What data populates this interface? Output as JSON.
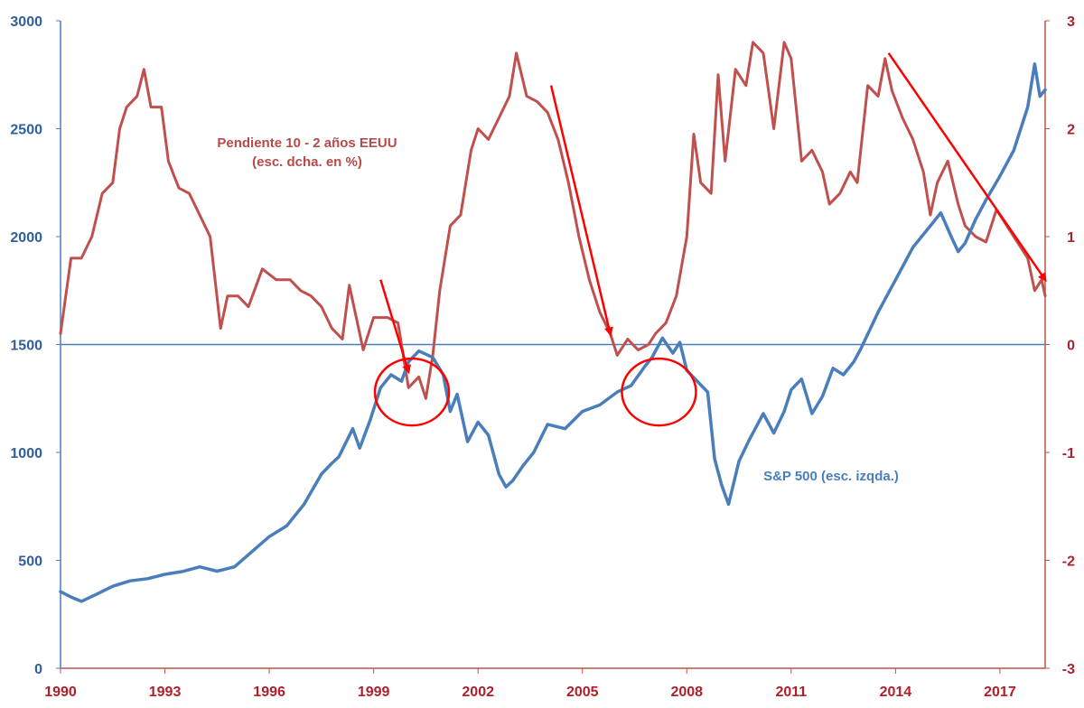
{
  "chart_data": {
    "type": "line",
    "title": "",
    "x_ticks": [
      "1990",
      "1993",
      "1996",
      "1999",
      "2002",
      "2005",
      "2008",
      "2011",
      "2014",
      "2017"
    ],
    "x_range": [
      1990,
      2018.3
    ],
    "left_axis": {
      "ticks": [
        "0",
        "500",
        "1000",
        "1500",
        "2000",
        "2500",
        "3000"
      ],
      "range": [
        0,
        3000
      ],
      "color": "#2f5f9e"
    },
    "right_axis": {
      "ticks": [
        "-3",
        "-2",
        "-1",
        "0",
        "1",
        "2",
        "3"
      ],
      "range": [
        -3,
        3
      ],
      "color": "#a6242e"
    },
    "series": [
      {
        "name": "S&P 500",
        "label": "S&P 500 (esc. izqda.)",
        "axis": "left",
        "color": "#4a7ebb",
        "points": [
          [
            1990.0,
            355
          ],
          [
            1990.3,
            330
          ],
          [
            1990.6,
            310
          ],
          [
            1991.0,
            340
          ],
          [
            1991.5,
            380
          ],
          [
            1992.0,
            405
          ],
          [
            1992.5,
            415
          ],
          [
            1993.0,
            435
          ],
          [
            1993.5,
            448
          ],
          [
            1994.0,
            470
          ],
          [
            1994.5,
            450
          ],
          [
            1995.0,
            470
          ],
          [
            1995.5,
            540
          ],
          [
            1996.0,
            610
          ],
          [
            1996.5,
            660
          ],
          [
            1997.0,
            760
          ],
          [
            1997.5,
            900
          ],
          [
            1997.8,
            950
          ],
          [
            1998.0,
            980
          ],
          [
            1998.4,
            1110
          ],
          [
            1998.6,
            1020
          ],
          [
            1998.9,
            1150
          ],
          [
            1999.2,
            1300
          ],
          [
            1999.5,
            1360
          ],
          [
            1999.8,
            1330
          ],
          [
            2000.0,
            1420
          ],
          [
            2000.3,
            1470
          ],
          [
            2000.7,
            1440
          ],
          [
            2001.0,
            1360
          ],
          [
            2001.2,
            1190
          ],
          [
            2001.4,
            1270
          ],
          [
            2001.7,
            1050
          ],
          [
            2002.0,
            1140
          ],
          [
            2002.3,
            1080
          ],
          [
            2002.6,
            900
          ],
          [
            2002.8,
            840
          ],
          [
            2003.0,
            870
          ],
          [
            2003.3,
            940
          ],
          [
            2003.6,
            1000
          ],
          [
            2004.0,
            1130
          ],
          [
            2004.5,
            1110
          ],
          [
            2005.0,
            1190
          ],
          [
            2005.5,
            1220
          ],
          [
            2006.0,
            1280
          ],
          [
            2006.4,
            1310
          ],
          [
            2006.8,
            1400
          ],
          [
            2007.0,
            1440
          ],
          [
            2007.3,
            1530
          ],
          [
            2007.6,
            1460
          ],
          [
            2007.8,
            1510
          ],
          [
            2008.0,
            1380
          ],
          [
            2008.3,
            1330
          ],
          [
            2008.6,
            1280
          ],
          [
            2008.8,
            970
          ],
          [
            2009.0,
            850
          ],
          [
            2009.2,
            760
          ],
          [
            2009.5,
            960
          ],
          [
            2009.8,
            1060
          ],
          [
            2010.0,
            1120
          ],
          [
            2010.2,
            1180
          ],
          [
            2010.5,
            1090
          ],
          [
            2010.8,
            1190
          ],
          [
            2011.0,
            1290
          ],
          [
            2011.3,
            1340
          ],
          [
            2011.6,
            1180
          ],
          [
            2011.9,
            1260
          ],
          [
            2012.2,
            1390
          ],
          [
            2012.5,
            1360
          ],
          [
            2012.8,
            1420
          ],
          [
            2013.0,
            1480
          ],
          [
            2013.5,
            1650
          ],
          [
            2014.0,
            1800
          ],
          [
            2014.5,
            1950
          ],
          [
            2015.0,
            2050
          ],
          [
            2015.3,
            2110
          ],
          [
            2015.6,
            2000
          ],
          [
            2015.8,
            1930
          ],
          [
            2016.0,
            1970
          ],
          [
            2016.3,
            2080
          ],
          [
            2016.6,
            2170
          ],
          [
            2017.0,
            2280
          ],
          [
            2017.4,
            2400
          ],
          [
            2017.8,
            2600
          ],
          [
            2018.0,
            2800
          ],
          [
            2018.15,
            2650
          ],
          [
            2018.3,
            2680
          ]
        ]
      },
      {
        "name": "Pendiente 10 - 2 años EEUU",
        "label_line1": "Pendiente 10 - 2 años EEUU",
        "label_line2": "(esc. dcha. en %)",
        "axis": "right",
        "color": "#c0504d",
        "points": [
          [
            1990.0,
            0.1
          ],
          [
            1990.3,
            0.8
          ],
          [
            1990.6,
            0.8
          ],
          [
            1990.9,
            1.0
          ],
          [
            1991.2,
            1.4
          ],
          [
            1991.5,
            1.5
          ],
          [
            1991.7,
            2.0
          ],
          [
            1991.9,
            2.2
          ],
          [
            1992.2,
            2.3
          ],
          [
            1992.4,
            2.55
          ],
          [
            1992.6,
            2.2
          ],
          [
            1992.9,
            2.2
          ],
          [
            1993.1,
            1.7
          ],
          [
            1993.4,
            1.45
          ],
          [
            1993.7,
            1.4
          ],
          [
            1994.0,
            1.2
          ],
          [
            1994.3,
            1.0
          ],
          [
            1994.6,
            0.15
          ],
          [
            1994.8,
            0.45
          ],
          [
            1995.1,
            0.45
          ],
          [
            1995.4,
            0.35
          ],
          [
            1995.8,
            0.7
          ],
          [
            1996.2,
            0.6
          ],
          [
            1996.6,
            0.6
          ],
          [
            1996.9,
            0.5
          ],
          [
            1997.2,
            0.45
          ],
          [
            1997.5,
            0.35
          ],
          [
            1997.8,
            0.15
          ],
          [
            1998.1,
            0.05
          ],
          [
            1998.3,
            0.55
          ],
          [
            1998.7,
            -0.05
          ],
          [
            1999.0,
            0.25
          ],
          [
            1999.4,
            0.25
          ],
          [
            1999.7,
            0.2
          ],
          [
            2000.0,
            -0.4
          ],
          [
            2000.3,
            -0.3
          ],
          [
            2000.5,
            -0.5
          ],
          [
            2000.7,
            -0.1
          ],
          [
            2000.9,
            0.5
          ],
          [
            2001.2,
            1.1
          ],
          [
            2001.5,
            1.2
          ],
          [
            2001.8,
            1.8
          ],
          [
            2002.0,
            2.0
          ],
          [
            2002.3,
            1.9
          ],
          [
            2002.6,
            2.1
          ],
          [
            2002.9,
            2.3
          ],
          [
            2003.1,
            2.7
          ],
          [
            2003.4,
            2.3
          ],
          [
            2003.7,
            2.25
          ],
          [
            2004.0,
            2.15
          ],
          [
            2004.3,
            1.9
          ],
          [
            2004.6,
            1.5
          ],
          [
            2004.9,
            1.0
          ],
          [
            2005.2,
            0.6
          ],
          [
            2005.5,
            0.3
          ],
          [
            2005.8,
            0.1
          ],
          [
            2006.0,
            -0.1
          ],
          [
            2006.3,
            0.05
          ],
          [
            2006.6,
            -0.05
          ],
          [
            2006.9,
            0.0
          ],
          [
            2007.1,
            0.1
          ],
          [
            2007.4,
            0.2
          ],
          [
            2007.7,
            0.45
          ],
          [
            2008.0,
            1.0
          ],
          [
            2008.2,
            1.95
          ],
          [
            2008.4,
            1.5
          ],
          [
            2008.7,
            1.4
          ],
          [
            2008.9,
            2.5
          ],
          [
            2009.1,
            1.7
          ],
          [
            2009.4,
            2.55
          ],
          [
            2009.7,
            2.4
          ],
          [
            2009.9,
            2.8
          ],
          [
            2010.2,
            2.7
          ],
          [
            2010.5,
            2.0
          ],
          [
            2010.8,
            2.8
          ],
          [
            2011.0,
            2.65
          ],
          [
            2011.3,
            1.7
          ],
          [
            2011.6,
            1.8
          ],
          [
            2011.9,
            1.6
          ],
          [
            2012.1,
            1.3
          ],
          [
            2012.4,
            1.4
          ],
          [
            2012.7,
            1.6
          ],
          [
            2012.9,
            1.5
          ],
          [
            2013.2,
            2.4
          ],
          [
            2013.5,
            2.3
          ],
          [
            2013.7,
            2.65
          ],
          [
            2013.9,
            2.35
          ],
          [
            2014.2,
            2.1
          ],
          [
            2014.5,
            1.9
          ],
          [
            2014.8,
            1.6
          ],
          [
            2015.0,
            1.2
          ],
          [
            2015.2,
            1.5
          ],
          [
            2015.5,
            1.7
          ],
          [
            2015.8,
            1.3
          ],
          [
            2016.0,
            1.1
          ],
          [
            2016.3,
            1.0
          ],
          [
            2016.6,
            0.95
          ],
          [
            2016.9,
            1.25
          ],
          [
            2017.2,
            1.1
          ],
          [
            2017.5,
            0.95
          ],
          [
            2017.8,
            0.8
          ],
          [
            2018.0,
            0.5
          ],
          [
            2018.2,
            0.6
          ],
          [
            2018.3,
            0.45
          ]
        ]
      }
    ],
    "annotations": {
      "arrows": [
        {
          "from": [
            1999.2,
            0.6
          ],
          "to": [
            2000.0,
            -0.25
          ]
        },
        {
          "from": [
            2004.1,
            2.4
          ],
          "to": [
            2005.8,
            0.1
          ]
        },
        {
          "from": [
            2013.8,
            2.7
          ],
          "to": [
            2018.3,
            0.6
          ]
        }
      ],
      "circles": [
        {
          "center_year": 2000.1,
          "center_value": 1280
        },
        {
          "center_year": 2007.2,
          "center_value": 1280
        }
      ]
    },
    "grid": false,
    "legend": "none"
  }
}
